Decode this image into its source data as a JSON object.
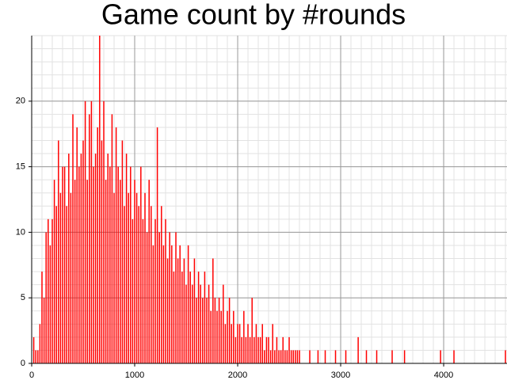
{
  "chart_data": {
    "type": "bar",
    "title": "Game count by #rounds",
    "x": [
      20,
      40,
      60,
      80,
      100,
      120,
      140,
      160,
      180,
      200,
      220,
      240,
      260,
      280,
      300,
      320,
      340,
      360,
      380,
      400,
      420,
      440,
      460,
      480,
      500,
      520,
      540,
      560,
      580,
      600,
      620,
      640,
      660,
      680,
      700,
      720,
      740,
      760,
      780,
      800,
      820,
      840,
      860,
      880,
      900,
      920,
      940,
      960,
      980,
      1000,
      1020,
      1040,
      1060,
      1080,
      1100,
      1120,
      1140,
      1160,
      1180,
      1200,
      1220,
      1240,
      1260,
      1280,
      1300,
      1320,
      1340,
      1360,
      1380,
      1400,
      1420,
      1440,
      1460,
      1480,
      1500,
      1520,
      1540,
      1560,
      1580,
      1600,
      1620,
      1640,
      1660,
      1680,
      1700,
      1720,
      1740,
      1760,
      1780,
      1800,
      1820,
      1840,
      1860,
      1880,
      1900,
      1920,
      1940,
      1960,
      1980,
      2000,
      2020,
      2040,
      2060,
      2080,
      2100,
      2120,
      2140,
      2160,
      2180,
      2200,
      2220,
      2240,
      2260,
      2280,
      2300,
      2320,
      2340,
      2360,
      2380,
      2400,
      2420,
      2440,
      2460,
      2480,
      2500,
      2520,
      2540,
      2560,
      2580,
      2600,
      2700,
      2780,
      2850,
      2950,
      3050,
      3170,
      3250,
      3350,
      3500,
      3620,
      3970,
      4100,
      4600
    ],
    "values": [
      2,
      1,
      1,
      3,
      7,
      5,
      10,
      11,
      9,
      11,
      14,
      12,
      17,
      13,
      15,
      15,
      12,
      16,
      13,
      19,
      14,
      18,
      15,
      16,
      17,
      20,
      14,
      19,
      20,
      15,
      16,
      18,
      25,
      17,
      20,
      14,
      16,
      15,
      19,
      13,
      18,
      15,
      14,
      17,
      12,
      16,
      13,
      15,
      11,
      14,
      13,
      12,
      15,
      11,
      13,
      10,
      14,
      12,
      9,
      11,
      18,
      10,
      12,
      9,
      11,
      8,
      10,
      9,
      7,
      10,
      8,
      9,
      7,
      8,
      6,
      9,
      7,
      6,
      8,
      5,
      7,
      6,
      5,
      7,
      5,
      6,
      4,
      8,
      5,
      4,
      5,
      4,
      6,
      3,
      4,
      5,
      3,
      4,
      2,
      3,
      3,
      2,
      4,
      2,
      3,
      2,
      5,
      2,
      3,
      2,
      2,
      3,
      1,
      2,
      2,
      1,
      3,
      1,
      2,
      1,
      1,
      2,
      1,
      1,
      2,
      1,
      1,
      1,
      1,
      1,
      1,
      1,
      1,
      1,
      1,
      2,
      1,
      1,
      1,
      1,
      1,
      1,
      1
    ],
    "color": "#ff0000",
    "xlim": [
      0,
      4615
    ],
    "ylim": [
      0,
      25
    ],
    "xticks": [
      0,
      1000,
      2000,
      3000,
      4000
    ],
    "yticks": [
      0,
      5,
      10,
      15,
      20
    ],
    "grid": true,
    "minor_grid": {
      "x": 100,
      "y": 1
    }
  }
}
